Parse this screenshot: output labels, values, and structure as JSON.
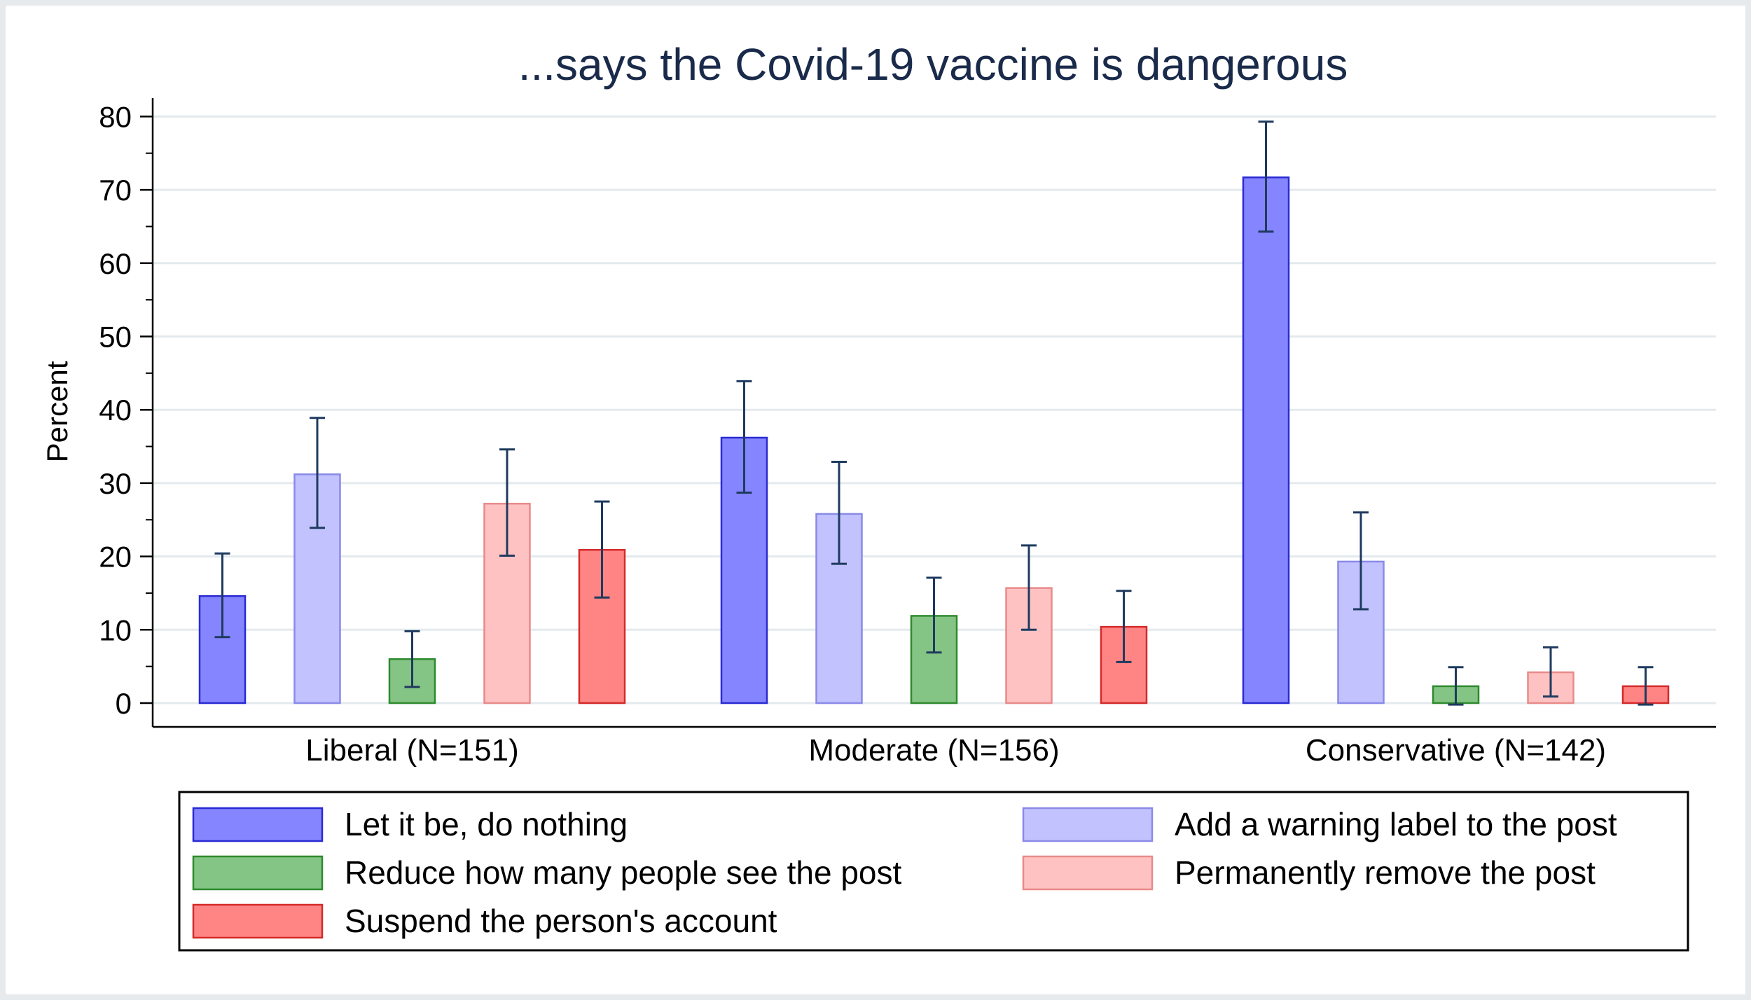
{
  "chart_data": {
    "type": "bar",
    "title": "...says the Covid-19 vaccine is dangerous",
    "ylabel": "Percent",
    "xlabel": "",
    "ylim": [
      0,
      80
    ],
    "yticks": [
      0,
      10,
      20,
      30,
      40,
      50,
      60,
      70,
      80
    ],
    "grid": true,
    "legend_position": "bottom",
    "categories": [
      "Liberal (N=151)",
      "Moderate (N=156)",
      "Conservative (N=142)"
    ],
    "series": [
      {
        "name": "Let it be, do nothing",
        "fill": "#8585ff",
        "stroke": "#2a2ad4",
        "values": [
          14.6,
          36.2,
          71.7
        ],
        "ci_low": [
          9.0,
          28.7,
          64.3
        ],
        "ci_high": [
          20.4,
          43.9,
          79.3
        ]
      },
      {
        "name": "Add a warning label to the post",
        "fill": "#c2c2ff",
        "stroke": "#8a8ae8",
        "values": [
          31.2,
          25.8,
          19.3
        ],
        "ci_low": [
          23.9,
          19.0,
          12.8
        ],
        "ci_high": [
          38.9,
          32.9,
          26.0
        ]
      },
      {
        "name": "Reduce how many people see the post",
        "fill": "#84c484",
        "stroke": "#2e8a2e",
        "values": [
          6.0,
          11.9,
          2.3
        ],
        "ci_low": [
          2.2,
          6.9,
          -0.2
        ],
        "ci_high": [
          9.8,
          17.1,
          4.9
        ]
      },
      {
        "name": "Permanently remove the post",
        "fill": "#ffc2c2",
        "stroke": "#e88a8a",
        "values": [
          27.2,
          15.7,
          4.2
        ],
        "ci_low": [
          20.1,
          10.0,
          0.9
        ],
        "ci_high": [
          34.6,
          21.5,
          7.6
        ]
      },
      {
        "name": "Suspend the person's account",
        "fill": "#ff8585",
        "stroke": "#d42a2a",
        "values": [
          20.9,
          10.4,
          2.3
        ],
        "ci_low": [
          14.4,
          5.6,
          -0.2
        ],
        "ci_high": [
          27.5,
          15.3,
          4.9
        ]
      }
    ]
  }
}
